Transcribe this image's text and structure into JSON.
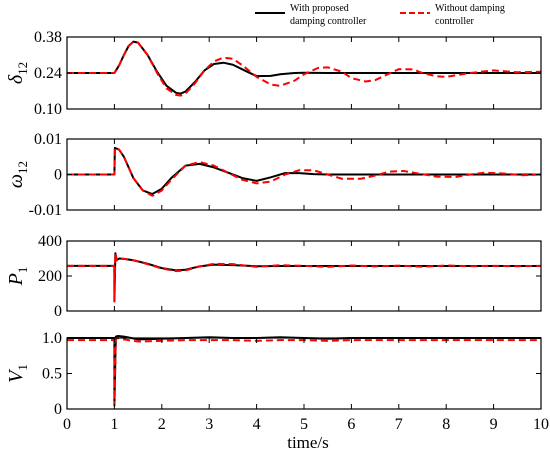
{
  "legend": {
    "position": "top-right",
    "entries": [
      {
        "label_line1": "With proposed",
        "label_line2": "damping controller",
        "color": "#000000",
        "dash": "solid"
      },
      {
        "label_line1": "Without damping",
        "label_line2": "controller",
        "color": "#ff0000",
        "dash": "dashed"
      }
    ]
  },
  "xlabel": "time/s",
  "chart_data": [
    {
      "type": "line",
      "ylabel_main": "δ",
      "ylabel_sub": "12",
      "xlim": [
        0,
        10
      ],
      "ylim": [
        0.1,
        0.38
      ],
      "yticks": [
        0.1,
        0.24,
        0.38
      ],
      "ytick_labels": [
        "0.10",
        "0.24",
        "0.38"
      ],
      "xticks": [
        0,
        1,
        2,
        3,
        4,
        5,
        6,
        7,
        8,
        9,
        10
      ],
      "grid": false,
      "series": [
        {
          "name": "With proposed damping controller",
          "color": "#000000",
          "dash": "solid",
          "x": [
            0,
            1,
            1.1,
            1.2,
            1.3,
            1.4,
            1.5,
            1.7,
            1.9,
            2.1,
            2.3,
            2.4,
            2.5,
            2.7,
            2.9,
            3.1,
            3.3,
            3.5,
            3.8,
            4.0,
            4.3,
            4.5,
            4.8,
            5.0,
            5.5,
            6,
            7,
            8,
            9,
            10
          ],
          "y": [
            0.24,
            0.24,
            0.27,
            0.31,
            0.345,
            0.362,
            0.358,
            0.31,
            0.245,
            0.19,
            0.163,
            0.16,
            0.168,
            0.205,
            0.25,
            0.275,
            0.28,
            0.272,
            0.245,
            0.228,
            0.229,
            0.235,
            0.24,
            0.241,
            0.24,
            0.24,
            0.24,
            0.24,
            0.24,
            0.24
          ]
        },
        {
          "name": "Without damping controller",
          "color": "#ff0000",
          "dash": "dashed",
          "x": [
            0,
            1,
            1.1,
            1.2,
            1.3,
            1.4,
            1.5,
            1.7,
            1.9,
            2.1,
            2.3,
            2.4,
            2.5,
            2.7,
            2.9,
            3.1,
            3.3,
            3.5,
            3.7,
            4.0,
            4.3,
            4.5,
            4.8,
            5.0,
            5.3,
            5.5,
            5.8,
            6.0,
            6.3,
            6.5,
            6.8,
            7.0,
            7.3,
            7.5,
            7.8,
            8.0,
            8.5,
            9.0,
            9.5,
            10
          ],
          "y": [
            0.24,
            0.24,
            0.27,
            0.31,
            0.345,
            0.362,
            0.358,
            0.31,
            0.24,
            0.18,
            0.155,
            0.152,
            0.16,
            0.2,
            0.25,
            0.285,
            0.3,
            0.295,
            0.27,
            0.225,
            0.195,
            0.19,
            0.21,
            0.235,
            0.26,
            0.262,
            0.245,
            0.22,
            0.207,
            0.212,
            0.238,
            0.255,
            0.254,
            0.24,
            0.227,
            0.225,
            0.24,
            0.25,
            0.243,
            0.245
          ]
        }
      ]
    },
    {
      "type": "line",
      "ylabel_main": "ω",
      "ylabel_sub": "12",
      "xlim": [
        0,
        10
      ],
      "ylim": [
        -0.01,
        0.01
      ],
      "yticks": [
        -0.01,
        0,
        0.01
      ],
      "ytick_labels": [
        "-0.01",
        "0",
        "0.01"
      ],
      "xticks": [
        0,
        1,
        2,
        3,
        4,
        5,
        6,
        7,
        8,
        9,
        10
      ],
      "grid": false,
      "series": [
        {
          "name": "With proposed damping controller",
          "color": "#000000",
          "dash": "solid",
          "x": [
            0,
            1,
            1.01,
            1.1,
            1.2,
            1.4,
            1.6,
            1.8,
            2.0,
            2.2,
            2.5,
            2.8,
            3.1,
            3.4,
            3.7,
            4.0,
            4.3,
            4.6,
            4.9,
            5.2,
            5.5,
            6,
            7,
            8,
            9,
            10
          ],
          "y": [
            0,
            0,
            0.0075,
            0.007,
            0.005,
            -0.001,
            -0.0045,
            -0.0055,
            -0.004,
            -0.001,
            0.0025,
            0.003,
            0.002,
            0.0005,
            -0.001,
            -0.0018,
            -0.0008,
            0.0004,
            0.0004,
            0.0001,
            0,
            0,
            0,
            0,
            0,
            0
          ]
        },
        {
          "name": "Without damping controller",
          "color": "#ff0000",
          "dash": "dashed",
          "x": [
            0,
            1,
            1.01,
            1.1,
            1.2,
            1.4,
            1.6,
            1.8,
            2.0,
            2.2,
            2.5,
            2.8,
            3.1,
            3.4,
            3.7,
            4.0,
            4.3,
            4.6,
            4.9,
            5.2,
            5.5,
            5.8,
            6.2,
            6.5,
            6.8,
            7.1,
            7.4,
            7.8,
            8.2,
            8.5,
            8.8,
            9.2,
            9.6,
            10
          ],
          "y": [
            0,
            0,
            0.0075,
            0.007,
            0.005,
            -0.001,
            -0.0045,
            -0.006,
            -0.0045,
            -0.0015,
            0.0025,
            0.0035,
            0.0025,
            0.0005,
            -0.0015,
            -0.0025,
            -0.002,
            0,
            0.0012,
            0.0012,
            0,
            -0.0012,
            -0.0012,
            -0.0003,
            0.0008,
            0.001,
            0.0003,
            -0.0006,
            -0.0007,
            0,
            0.0005,
            0.0003,
            -0.0002,
            0
          ]
        }
      ]
    },
    {
      "type": "line",
      "ylabel_main": "P",
      "ylabel_sub": "1",
      "xlim": [
        0,
        10
      ],
      "ylim": [
        0,
        400
      ],
      "yticks": [
        0,
        200,
        400
      ],
      "ytick_labels": [
        "0",
        "200",
        "400"
      ],
      "xticks": [
        0,
        1,
        2,
        3,
        4,
        5,
        6,
        7,
        8,
        9,
        10
      ],
      "grid": false,
      "series": [
        {
          "name": "With proposed damping controller",
          "color": "#000000",
          "dash": "solid",
          "x": [
            0,
            1,
            1.0,
            1.02,
            1.05,
            1.1,
            1.2,
            1.4,
            1.7,
            2.0,
            2.3,
            2.5,
            2.8,
            3.1,
            3.5,
            4,
            4.5,
            5,
            6,
            7,
            8,
            9,
            10
          ],
          "y": [
            258,
            258,
            55,
            330,
            290,
            300,
            298,
            290,
            270,
            245,
            232,
            236,
            255,
            265,
            262,
            256,
            257,
            257,
            257,
            257,
            257,
            257,
            257
          ]
        },
        {
          "name": "Without damping controller",
          "color": "#ff0000",
          "dash": "dashed",
          "x": [
            0,
            1,
            1.0,
            1.02,
            1.05,
            1.1,
            1.2,
            1.4,
            1.7,
            2.0,
            2.3,
            2.5,
            2.8,
            3.1,
            3.5,
            4,
            4.5,
            5,
            5.5,
            6,
            6.5,
            7,
            7.5,
            8,
            8.5,
            9,
            9.5,
            10
          ],
          "y": [
            258,
            258,
            55,
            330,
            290,
            300,
            298,
            290,
            268,
            243,
            228,
            232,
            255,
            270,
            268,
            252,
            262,
            258,
            252,
            260,
            255,
            259,
            253,
            260,
            256,
            258,
            256,
            258
          ]
        }
      ]
    },
    {
      "type": "line",
      "ylabel_main": "V",
      "ylabel_sub": "1",
      "xlim": [
        0,
        10
      ],
      "ylim": [
        0,
        1.0
      ],
      "yticks": [
        0,
        0.5,
        1.0
      ],
      "ytick_labels": [
        "0",
        "0.5",
        "1.0"
      ],
      "xticks": [
        0,
        1,
        2,
        3,
        4,
        5,
        6,
        7,
        8,
        9,
        10
      ],
      "xtick_labels": [
        "0",
        "1",
        "2",
        "3",
        "4",
        "5",
        "6",
        "7",
        "8",
        "9",
        "10"
      ],
      "grid": false,
      "series": [
        {
          "name": "With proposed damping controller",
          "color": "#000000",
          "dash": "solid",
          "x": [
            0,
            1,
            1.0,
            1.03,
            1.08,
            1.2,
            1.5,
            2,
            2.5,
            3,
            3.5,
            4,
            4.5,
            5,
            5.5,
            6,
            7,
            8,
            9,
            10
          ],
          "y": [
            1.0,
            1.0,
            0.05,
            1.02,
            1.05,
            1.02,
            0.98,
            0.99,
            1.0,
            1.01,
            1.0,
            1.0,
            1.01,
            1.0,
            0.99,
            1.0,
            1.0,
            1.0,
            1.0,
            1.0
          ]
        },
        {
          "name": "Without damping controller",
          "color": "#ff0000",
          "dash": "dashed",
          "x": [
            0,
            1,
            1.0,
            1.03,
            1.08,
            1.2,
            1.5,
            2,
            2.5,
            3,
            3.5,
            4,
            4.5,
            5,
            5.5,
            6,
            7,
            8,
            9,
            10
          ],
          "y": [
            0.97,
            0.97,
            0.05,
            0.99,
            1.0,
            0.98,
            0.95,
            0.96,
            0.97,
            0.97,
            0.97,
            0.96,
            0.97,
            0.97,
            0.96,
            0.97,
            0.97,
            0.97,
            0.97,
            0.97
          ]
        }
      ]
    }
  ]
}
